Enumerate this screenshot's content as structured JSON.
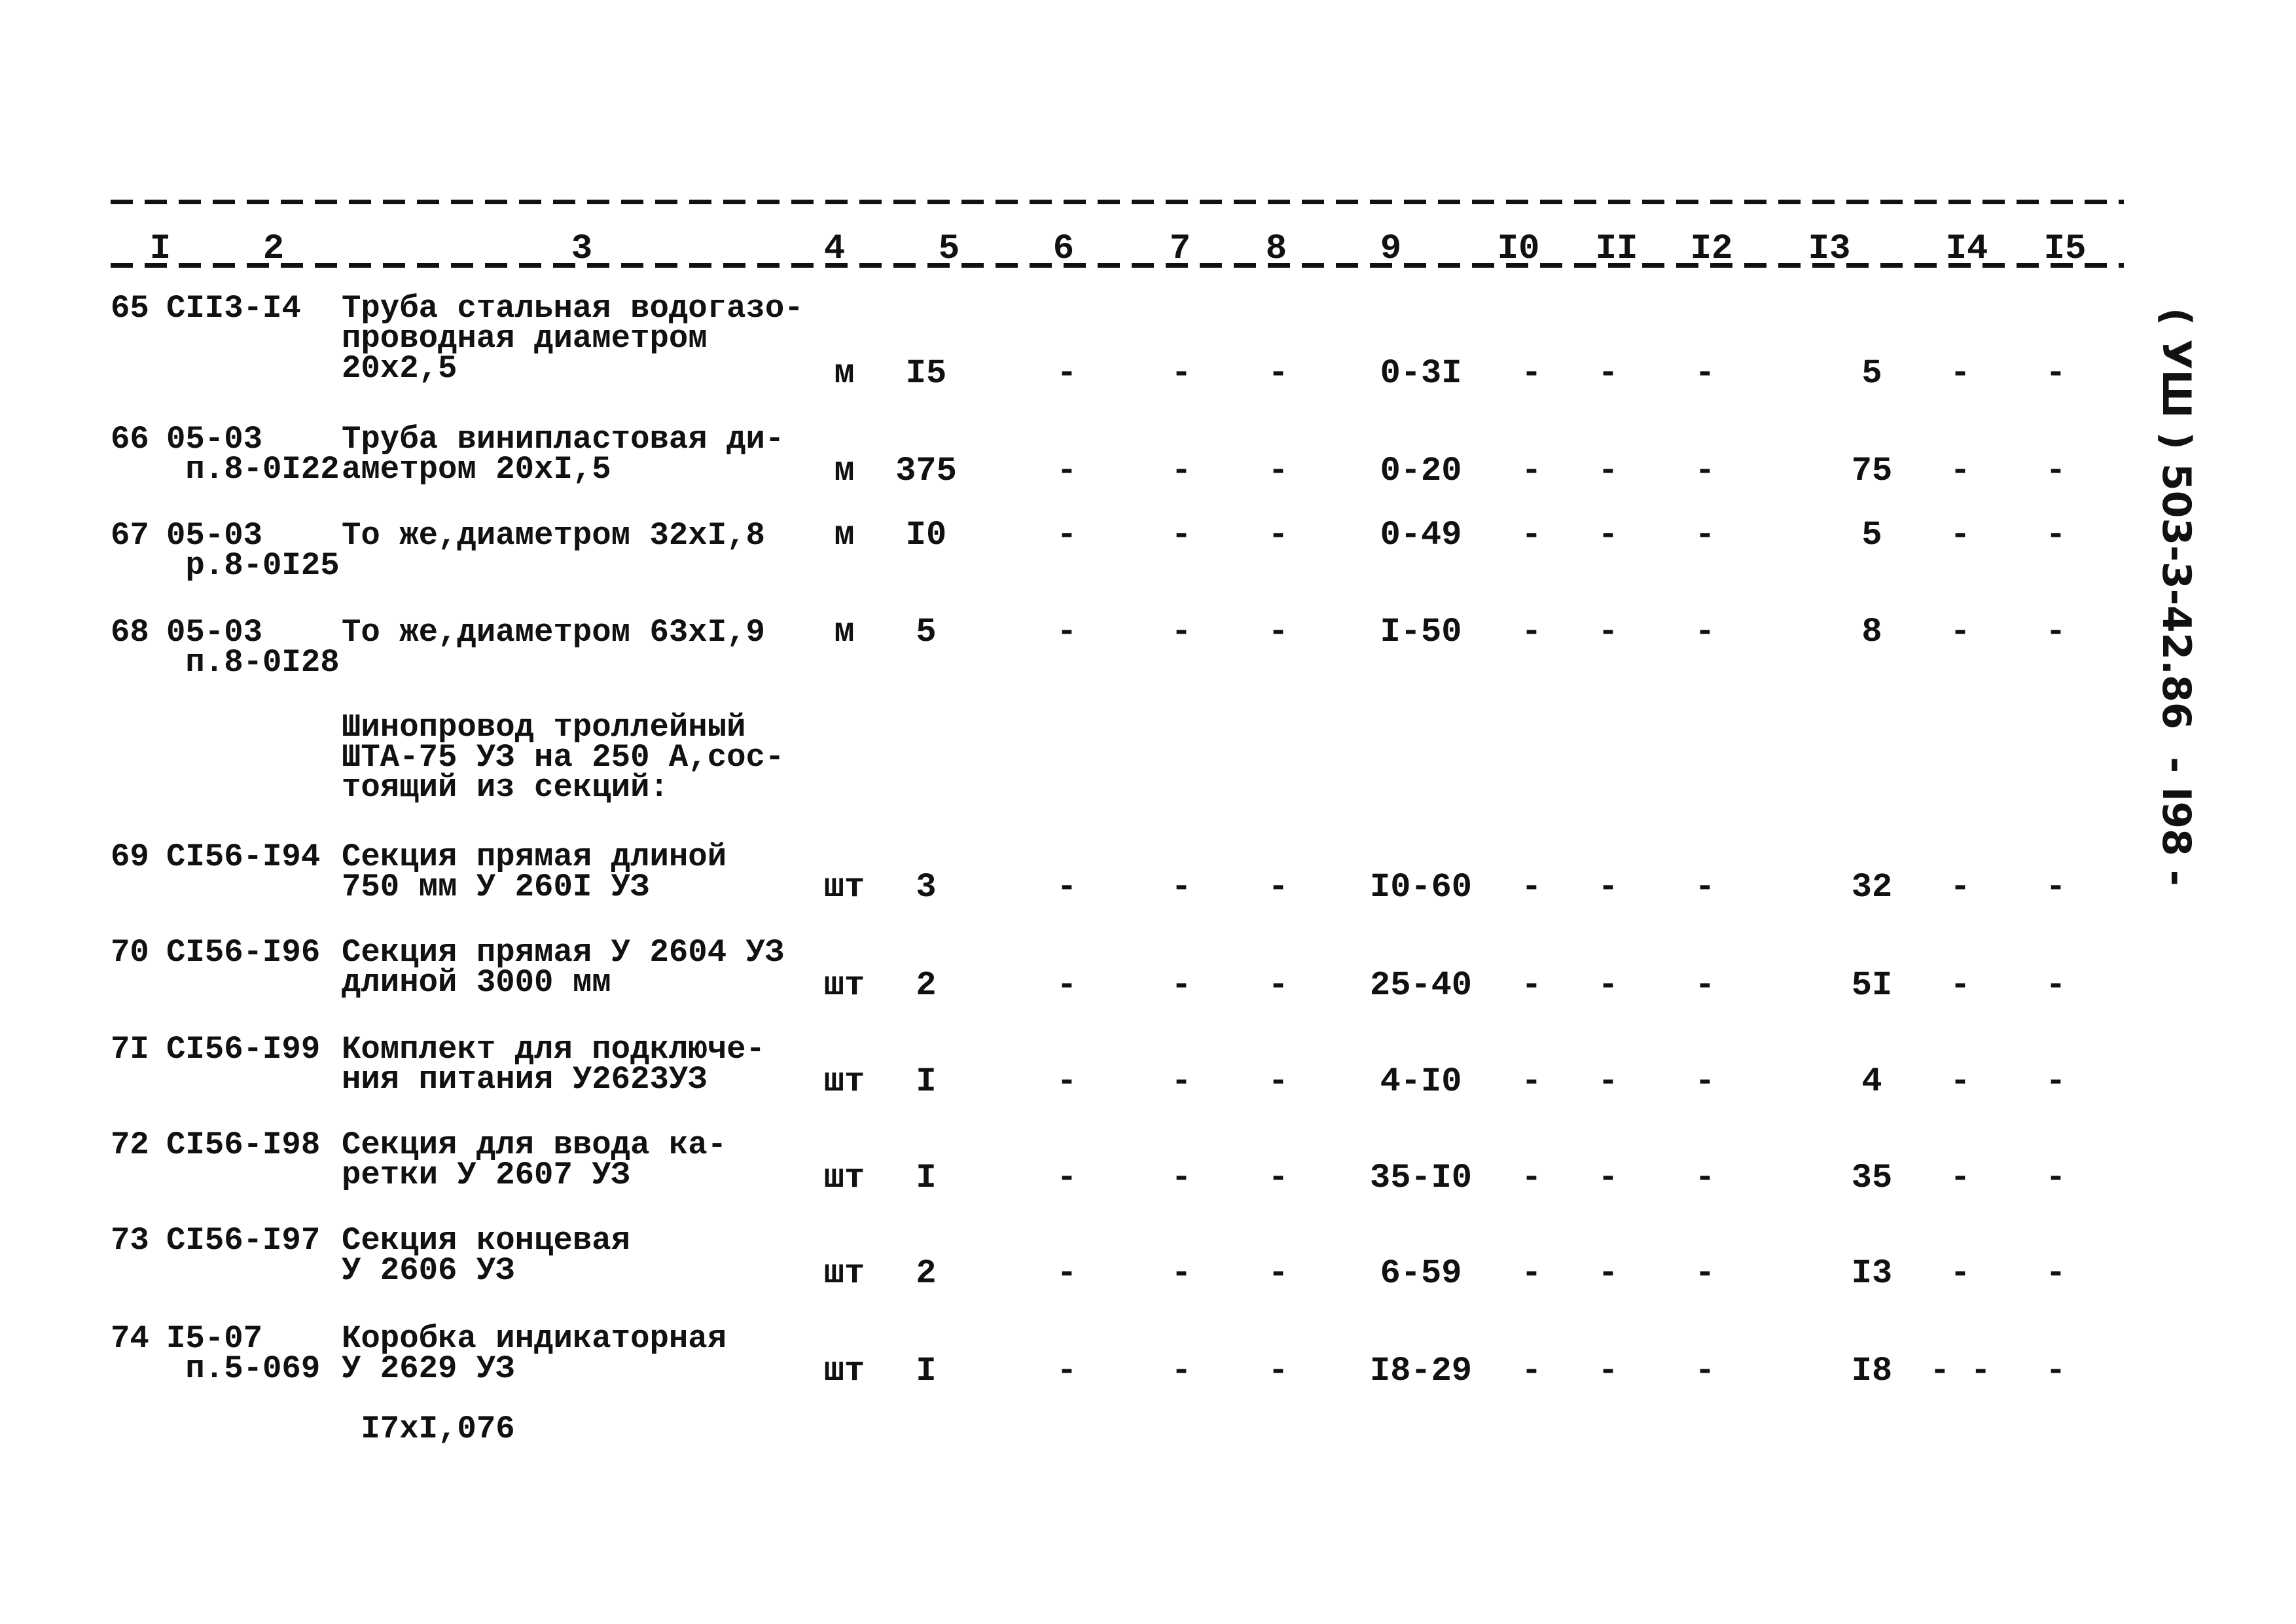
{
  "header": {
    "columns": [
      "I",
      "2",
      "3",
      "4",
      "5",
      "6",
      "7",
      "8",
      "9",
      "I0",
      "II",
      "I2",
      "I3",
      "I4",
      "I5"
    ]
  },
  "rows": [
    {
      "num": "65",
      "code": "CII3-I4",
      "desc": "Труба стальная водогазо-\nпроводная диаметром\n20x2,5",
      "unit": "м",
      "c5": "I5",
      "c6": "-",
      "c7": "-",
      "c8": "-",
      "c9": "0-3I",
      "c10": "-",
      "c11": "-",
      "c12": "-",
      "c13": "5",
      "c14": "-",
      "c15": "-"
    },
    {
      "num": "66",
      "code": "05-03\n п.8-0I22",
      "desc": "Труба винипластовая ди-\nаметром 20xI,5",
      "unit": "м",
      "c5": "375",
      "c6": "-",
      "c7": "-",
      "c8": "-",
      "c9": "0-20",
      "c10": "-",
      "c11": "-",
      "c12": "-",
      "c13": "75",
      "c14": "-",
      "c15": "-"
    },
    {
      "num": "67",
      "code": "05-03\n р.8-0I25",
      "desc": "То же,диаметром 32xI,8",
      "unit": "м",
      "c5": "I0",
      "c6": "-",
      "c7": "-",
      "c8": "-",
      "c9": "0-49",
      "c10": "-",
      "c11": "-",
      "c12": "-",
      "c13": "5",
      "c14": "-",
      "c15": "-"
    },
    {
      "num": "68",
      "code": "05-03\n п.8-0I28",
      "desc": "То же,диаметром 63xI,9",
      "unit": "м",
      "c5": "5",
      "c6": "-",
      "c7": "-",
      "c8": "-",
      "c9": "I-50",
      "c10": "-",
      "c11": "-",
      "c12": "-",
      "c13": "8",
      "c14": "-",
      "c15": "-"
    },
    {
      "num": "",
      "code": "",
      "desc": "Шинопровод троллейный\nШТА-75 УЗ на 250 А,сос-\nтоящий из секций:",
      "unit": "",
      "c5": "",
      "c6": "",
      "c7": "",
      "c8": "",
      "c9": "",
      "c10": "",
      "c11": "",
      "c12": "",
      "c13": "",
      "c14": "",
      "c15": ""
    },
    {
      "num": "69",
      "code": "CI56-I94",
      "desc": "Секция прямая длиной\n750 мм У 260I УЗ",
      "unit": "шт",
      "c5": "3",
      "c6": "-",
      "c7": "-",
      "c8": "-",
      "c9": "I0-60",
      "c10": "-",
      "c11": "-",
      "c12": "-",
      "c13": "32",
      "c14": "-",
      "c15": "-"
    },
    {
      "num": "70",
      "code": "CI56-I96",
      "desc": "Секция прямая У 2604 УЗ\nдлиной 3000 мм",
      "unit": "шт",
      "c5": "2",
      "c6": "-",
      "c7": "-",
      "c8": "-",
      "c9": "25-40",
      "c10": "-",
      "c11": "-",
      "c12": "-",
      "c13": "5I",
      "c14": "-",
      "c15": "-"
    },
    {
      "num": "7I",
      "code": "CI56-I99",
      "desc": "Комплект для подключе-\nния питания У2623УЗ",
      "unit": "шт",
      "c5": "I",
      "c6": "-",
      "c7": "-",
      "c8": "-",
      "c9": "4-I0",
      "c10": "-",
      "c11": "-",
      "c12": "-",
      "c13": "4",
      "c14": "-",
      "c15": "-"
    },
    {
      "num": "72",
      "code": "CI56-I98",
      "desc": "Секция для ввода ка-\nретки У 2607 УЗ",
      "unit": "шт",
      "c5": "I",
      "c6": "-",
      "c7": "-",
      "c8": "-",
      "c9": "35-I0",
      "c10": "-",
      "c11": "-",
      "c12": "-",
      "c13": "35",
      "c14": "-",
      "c15": "-"
    },
    {
      "num": "73",
      "code": "CI56-I97",
      "desc": "Секция концевая\nУ 2606 УЗ",
      "unit": "шт",
      "c5": "2",
      "c6": "-",
      "c7": "-",
      "c8": "-",
      "c9": "6-59",
      "c10": "-",
      "c11": "-",
      "c12": "-",
      "c13": "I3",
      "c14": "-",
      "c15": "-"
    },
    {
      "num": "74",
      "code": "I5-07\n п.5-069",
      "desc": "Коробка индикаторная\nУ 2629 УЗ\n\n I7xI,076",
      "unit": "шт",
      "c5": "I",
      "c6": "-",
      "c7": "-",
      "c8": "-",
      "c9": "I8-29",
      "c10": "-",
      "c11": "-",
      "c12": "-",
      "c13": "I8",
      "c14": "- -",
      "c15": "-"
    }
  ],
  "stamp": "( УШ ) 503-3-42.86  - I98 -"
}
